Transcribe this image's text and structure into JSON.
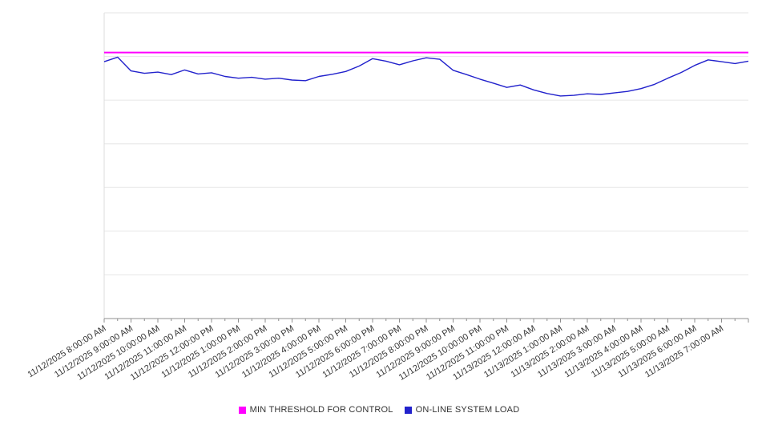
{
  "chart_data": {
    "type": "line",
    "x_labels": [
      "11/12/2025 8:00:00 AM",
      "11/12/2025 9:00:00 AM",
      "11/12/2025 10:00:00 AM",
      "11/12/2025 11:00:00 AM",
      "11/12/2025 12:00:00 PM",
      "11/12/2025 1:00:00 PM",
      "11/12/2025 2:00:00 PM",
      "11/12/2025 3:00:00 PM",
      "11/12/2025 4:00:00 PM",
      "11/12/2025 5:00:00 PM",
      "11/12/2025 6:00:00 PM",
      "11/12/2025 7:00:00 PM",
      "11/12/2025 8:00:00 PM",
      "11/12/2025 9:00:00 PM",
      "11/12/2025 10:00:00 PM",
      "11/12/2025 11:00:00 PM",
      "11/13/2025 12:00:00 AM",
      "11/13/2025 1:00:00 AM",
      "11/13/2025 2:00:00 AM",
      "11/13/2025 3:00:00 AM",
      "11/13/2025 4:00:00 AM",
      "11/13/2025 5:00:00 AM",
      "11/13/2025 6:00:00 AM",
      "11/13/2025 7:00:00 AM"
    ],
    "series": [
      {
        "name": "MIN THRESHOLD FOR CONTROL",
        "kind": "threshold",
        "color": "#ff00ff",
        "value": 87
      },
      {
        "name": "ON-LINE SYSTEM LOAD",
        "kind": "line",
        "color": "#2222cc",
        "x_start_hour": 0,
        "x_step_hours": 0.5,
        "values": [
          84.0,
          85.5,
          81.0,
          80.2,
          80.6,
          79.8,
          81.3,
          80.0,
          80.4,
          79.2,
          78.6,
          78.9,
          78.3,
          78.6,
          78.0,
          77.8,
          79.2,
          79.9,
          80.8,
          82.6,
          85.0,
          84.2,
          83.0,
          84.3,
          85.3,
          84.8,
          81.2,
          79.8,
          78.3,
          77.0,
          75.6,
          76.4,
          74.8,
          73.6,
          72.8,
          73.0,
          73.5,
          73.3,
          73.8,
          74.3,
          75.2,
          76.6,
          78.6,
          80.5,
          82.8,
          84.6,
          84.0,
          83.4,
          84.2
        ]
      }
    ],
    "ylim": [
      0,
      100
    ],
    "y_axis_labels_visible": false,
    "gridline_count": 8,
    "grid": true,
    "legend_position": "bottom",
    "colors": {
      "gridline": "#e6e6e6",
      "axis": "#8f8f8f",
      "left_axis": "#dddddd",
      "label_text": "#333333"
    }
  }
}
